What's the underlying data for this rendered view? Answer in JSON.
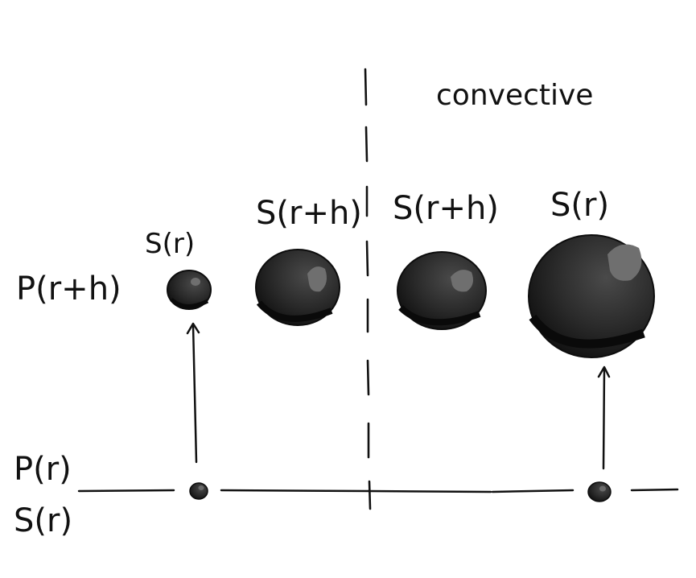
{
  "region_label": "convective",
  "left_labels": {
    "top": "P(r+h)",
    "bottom_line1": "P(r)",
    "bottom_line2": "S(r)"
  },
  "bubble_labels": {
    "small_top": "S(r)",
    "mid_left": "S(r+h)",
    "mid_right": "S(r+h)",
    "large_right": "S(r)"
  },
  "colors": {
    "ink": "#111111",
    "bubble_dark": "#1a1a1a",
    "bubble_mid": "#3a3a3a",
    "bubble_highlight": "#7a7a7a"
  }
}
